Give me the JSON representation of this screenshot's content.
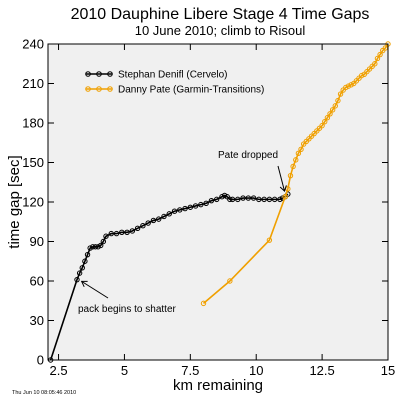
{
  "chart_data": {
    "type": "line",
    "title": "2010 Dauphine Libere Stage 4 Time Gaps",
    "subtitle": "10 June 2010; climb to Risoul",
    "xlabel": "km remaining",
    "ylabel": "time gap [sec]",
    "xlim": [
      2.1,
      15
    ],
    "ylim": [
      0,
      240
    ],
    "xticks": [
      2.5,
      5,
      7.5,
      10,
      12.5,
      15
    ],
    "xtick_labels": [
      "2.5",
      "5",
      "7.5",
      "10",
      "12.5",
      "15"
    ],
    "yticks": [
      0,
      30,
      60,
      90,
      120,
      150,
      180,
      210,
      240
    ],
    "ytick_labels": [
      "0",
      "30",
      "60",
      "90",
      "120",
      "150",
      "180",
      "210",
      "240"
    ],
    "grid": false,
    "legend_position": "top-left",
    "background": "#f0f0f0",
    "series": [
      {
        "name": "Stephan Denifl (Cervelo)",
        "color": "#000000",
        "marker": "open-circle",
        "x": [
          2.2,
          3.2,
          3.3,
          3.4,
          3.5,
          3.6,
          3.7,
          3.8,
          3.9,
          4.0,
          4.1,
          4.2,
          4.3,
          4.5,
          4.7,
          4.9,
          5.1,
          5.3,
          5.5,
          5.7,
          5.9,
          6.1,
          6.3,
          6.5,
          6.7,
          6.9,
          7.1,
          7.3,
          7.5,
          7.7,
          7.9,
          8.1,
          8.3,
          8.5,
          8.7,
          8.8,
          8.9,
          9.0,
          9.1,
          9.3,
          9.5,
          9.7,
          9.9,
          10.1,
          10.3,
          10.5,
          10.7,
          10.9,
          11.0,
          11.1,
          11.2
        ],
        "values": [
          0,
          61,
          66,
          70,
          75,
          80,
          85,
          86,
          86,
          86,
          87,
          90,
          94,
          96,
          96,
          97,
          97,
          98,
          100,
          102,
          104,
          106,
          107,
          109,
          111,
          113,
          114,
          115,
          116,
          117,
          118,
          119,
          121,
          122,
          124,
          125,
          124,
          122,
          122,
          122,
          123,
          123,
          123,
          122,
          122,
          122,
          122,
          122,
          123,
          124,
          126
        ]
      },
      {
        "name": "Danny Pate (Garmin-Transitions)",
        "color": "#f0a000",
        "marker": "open-circle",
        "x": [
          8.0,
          9.0,
          10.5,
          11.1,
          11.2,
          11.3,
          11.4,
          11.5,
          11.6,
          11.7,
          11.8,
          11.9,
          12.0,
          12.1,
          12.2,
          12.3,
          12.4,
          12.5,
          12.6,
          12.7,
          12.8,
          12.9,
          13.0,
          13.1,
          13.2,
          13.3,
          13.4,
          13.5,
          13.6,
          13.7,
          13.8,
          13.9,
          14.0,
          14.1,
          14.2,
          14.3,
          14.4,
          14.5,
          14.6,
          14.7,
          14.8,
          14.9,
          15.0
        ],
        "values": [
          43,
          60,
          91,
          124,
          130,
          140,
          147,
          152,
          157,
          160,
          164,
          166,
          168,
          170,
          172,
          174,
          176,
          178,
          181,
          184,
          187,
          190,
          193,
          197,
          202,
          205,
          207,
          208,
          209,
          210,
          212,
          214,
          216,
          217,
          219,
          221,
          223,
          225,
          229,
          232,
          235,
          237,
          240
        ]
      }
    ],
    "annotations": [
      {
        "text": "pack begins to shatter",
        "x": 3.3,
        "y": 62
      },
      {
        "text": "Pate dropped",
        "x": 11.15,
        "y": 126
      }
    ]
  },
  "footer": {
    "timestamp": "Thu Jun 10 08:05:46 2010"
  }
}
